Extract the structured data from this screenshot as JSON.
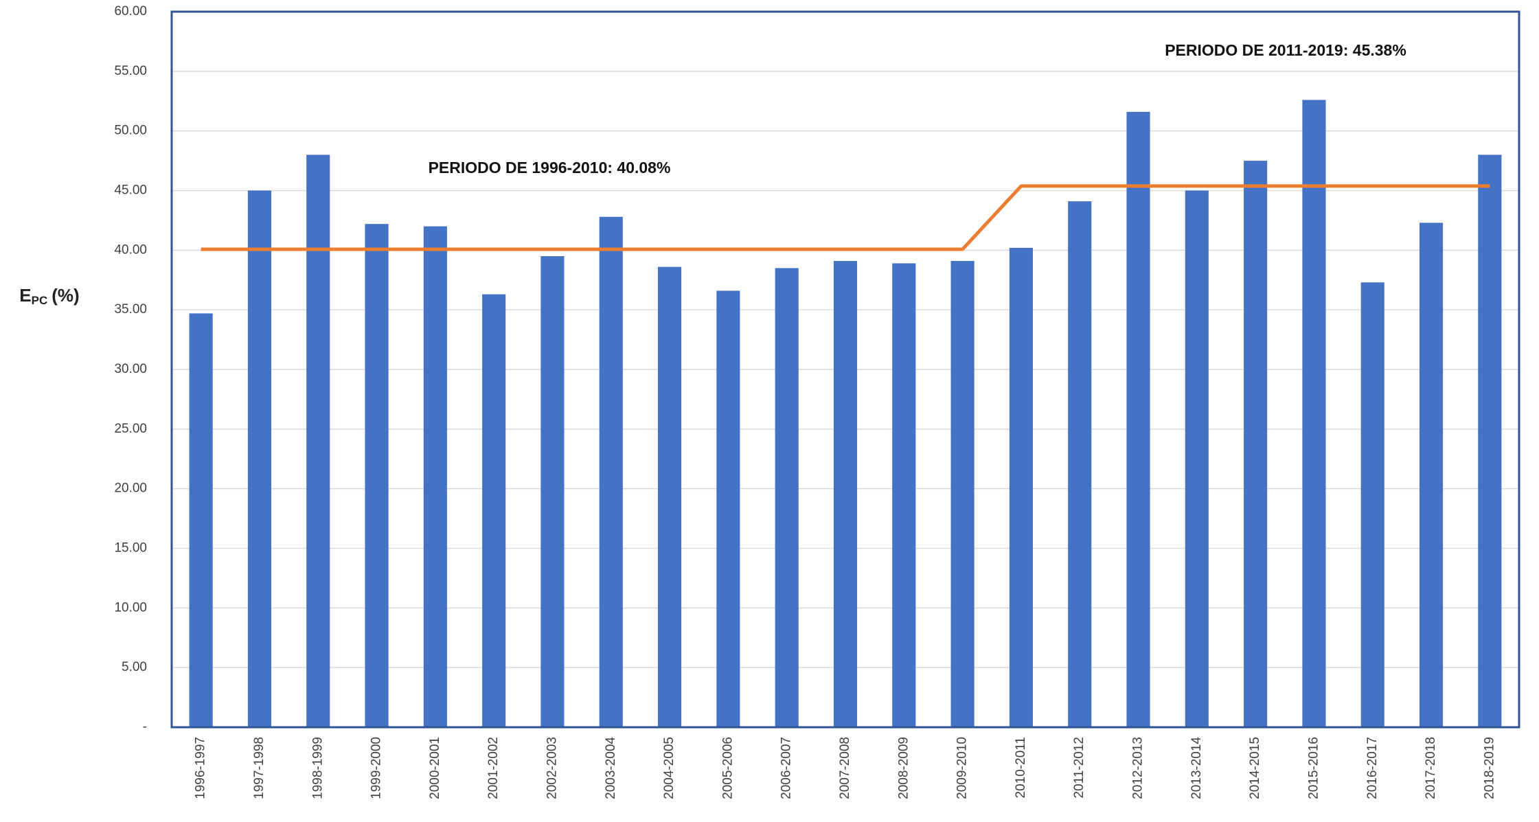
{
  "chart_data": {
    "type": "bar",
    "y_label": {
      "main": "E",
      "sub": "PC",
      "unit": "(%)"
    },
    "annotations": [
      "PERIODO DE 1996-2010:  40.08%",
      "PERIODO DE 2011-2019:  45.38%"
    ],
    "categories": [
      "1996-1997",
      "1997-1998",
      "1998-1999",
      "1999-2000",
      "2000-2001",
      "2001-2002",
      "2002-2003",
      "2003-2004",
      "2004-2005",
      "2005-2006",
      "2006-2007",
      "2007-2008",
      "2008-2009",
      "2009-2010",
      "2010-2011",
      "2011-2012",
      "2012-2013",
      "2013-2014",
      "2014-2015",
      "2015-2016",
      "2016-2017",
      "2017-2018",
      "2018-2019"
    ],
    "series": [
      {
        "type": "bar",
        "color": "#4472c4",
        "values": [
          34.7,
          45.0,
          48.0,
          42.2,
          42.0,
          36.3,
          39.5,
          42.8,
          38.6,
          36.6,
          38.5,
          39.1,
          38.9,
          39.1,
          40.2,
          44.1,
          51.6,
          45.0,
          47.5,
          52.6,
          37.3,
          42.3,
          48.0
        ]
      },
      {
        "type": "line",
        "color": "#ed7d31",
        "values": [
          40.08,
          40.08,
          40.08,
          40.08,
          40.08,
          40.08,
          40.08,
          40.08,
          40.08,
          40.08,
          40.08,
          40.08,
          40.08,
          40.08,
          45.38,
          45.38,
          45.38,
          45.38,
          45.38,
          45.38,
          45.38,
          45.38,
          45.38
        ]
      }
    ],
    "ylim": [
      0,
      60
    ],
    "yticks": [
      {
        "value": 0,
        "label": "-"
      },
      {
        "value": 5,
        "label": "5.00"
      },
      {
        "value": 10,
        "label": "10.00"
      },
      {
        "value": 15,
        "label": "15.00"
      },
      {
        "value": 20,
        "label": "20.00"
      },
      {
        "value": 25,
        "label": "25.00"
      },
      {
        "value": 30,
        "label": "30.00"
      },
      {
        "value": 35,
        "label": "35.00"
      },
      {
        "value": 40,
        "label": "40.00"
      },
      {
        "value": 45,
        "label": "45.00"
      },
      {
        "value": 50,
        "label": "50.00"
      },
      {
        "value": 55,
        "label": "55.00"
      },
      {
        "value": 60,
        "label": "60.00"
      }
    ],
    "grid": true
  }
}
